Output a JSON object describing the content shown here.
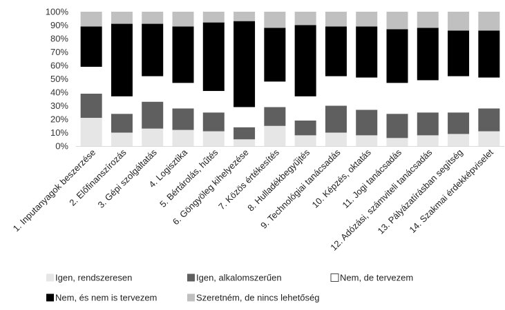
{
  "chart_data": {
    "type": "bar",
    "stacked": true,
    "percent": true,
    "categories": [
      "1. Inputanyagok beszerzése",
      "2. Előfinanszírozás",
      "3. Gépi szolgáltatás",
      "4. Logisztika",
      "5. Bértárolás, hűtés",
      "6. Göngyöleg kihelyezése",
      "7. Közös értékesítés",
      "8. Hulladékbegyűjtés",
      "9. Technológiai tanácsadás",
      "10. Képzés, oktatás",
      "11. Jogi tanácsadás",
      "12. Adózási, számviteli tanácsadás",
      "13. Pályázatírásban segítség",
      "14. Szakmai érdekképviselet"
    ],
    "series": [
      {
        "name": "Igen, rendszeresen",
        "color": "#e6e6e6",
        "values": [
          21,
          10,
          13,
          12,
          11,
          5,
          15,
          8,
          10,
          8,
          6,
          8,
          9,
          11
        ]
      },
      {
        "name": "Igen, alkalomszerűen",
        "color": "#5f5f5f",
        "values": [
          18,
          14,
          20,
          16,
          14,
          9,
          14,
          11,
          20,
          19,
          18,
          17,
          16,
          17
        ]
      },
      {
        "name": "Nem, de tervezem",
        "color": "#ffffff",
        "values": [
          20,
          13,
          19,
          19,
          16,
          15,
          19,
          18,
          22,
          24,
          23,
          24,
          27,
          23
        ]
      },
      {
        "name": "Nem, és nem is tervezem",
        "color": "#000000",
        "values": [
          30,
          54,
          39,
          42,
          51,
          64,
          40,
          53,
          37,
          38,
          40,
          39,
          34,
          35
        ]
      },
      {
        "name": "Szeretném, de nincs lehetőség",
        "color": "#c0c0c0",
        "values": [
          11,
          9,
          9,
          11,
          8,
          7,
          12,
          10,
          11,
          11,
          13,
          12,
          14,
          14
        ]
      }
    ],
    "y_ticks": [
      "0%",
      "10%",
      "20%",
      "30%",
      "40%",
      "50%",
      "60%",
      "70%",
      "80%",
      "90%",
      "100%"
    ],
    "ylim": [
      0,
      100
    ],
    "grid": false,
    "legend_position": "bottom"
  }
}
